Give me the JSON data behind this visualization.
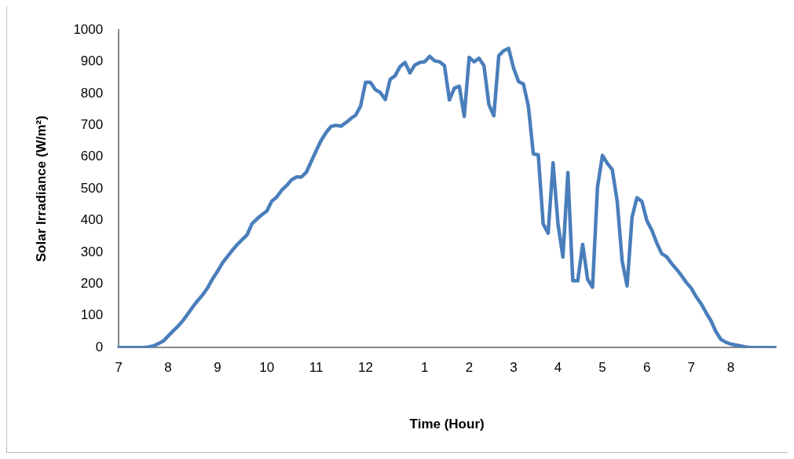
{
  "chart_data": {
    "type": "line",
    "xlabel": "Time (Hour)",
    "ylabel": "Solar Irradiance (W/m²)",
    "marker": "none",
    "line_style": "solid",
    "categories": [
      "7",
      null,
      null,
      null,
      null,
      null,
      null,
      null,
      null,
      null,
      "8",
      null,
      null,
      null,
      null,
      null,
      null,
      null,
      null,
      null,
      "9",
      null,
      null,
      null,
      null,
      null,
      null,
      null,
      null,
      null,
      "10",
      null,
      null,
      null,
      null,
      null,
      null,
      null,
      null,
      null,
      "11",
      null,
      null,
      null,
      null,
      null,
      null,
      null,
      null,
      null,
      "12",
      null,
      null,
      null,
      null,
      null,
      null,
      null,
      null,
      null,
      null,
      null,
      "1",
      null,
      null,
      null,
      null,
      null,
      null,
      null,
      null,
      "2",
      null,
      null,
      null,
      null,
      null,
      null,
      null,
      null,
      "3",
      null,
      null,
      null,
      null,
      null,
      null,
      null,
      null,
      "4",
      null,
      null,
      null,
      null,
      null,
      null,
      null,
      null,
      "5",
      null,
      null,
      null,
      null,
      null,
      null,
      null,
      null,
      "6",
      null,
      null,
      null,
      null,
      null,
      null,
      null,
      null,
      "7",
      null,
      null,
      null,
      null,
      null,
      null,
      null,
      "8",
      null,
      null,
      null,
      null,
      null,
      null,
      null,
      null,
      null
    ],
    "series": [
      {
        "color": "#4a7ebb",
        "values": [
          0,
          0,
          0,
          0,
          0,
          0,
          2,
          5,
          12,
          20,
          36,
          52,
          67,
          85,
          106,
          128,
          148,
          166,
          188,
          216,
          240,
          266,
          286,
          306,
          324,
          340,
          355,
          390,
          405,
          418,
          430,
          461,
          474,
          495,
          510,
          528,
          537,
          537,
          552,
          586,
          620,
          652,
          677,
          696,
          700,
          697,
          708,
          721,
          732,
          760,
          835,
          835,
          812,
          803,
          781,
          845,
          856,
          885,
          898,
          865,
          890,
          898,
          900,
          917,
          903,
          900,
          888,
          780,
          817,
          823,
          728,
          914,
          900,
          911,
          888,
          765,
          730,
          919,
          935,
          942,
          880,
          838,
          830,
          760,
          610,
          607,
          389,
          360,
          582,
          389,
          285,
          551,
          210,
          210,
          325,
          215,
          190,
          505,
          605,
          580,
          560,
          460,
          273,
          194,
          410,
          472,
          460,
          400,
          370,
          330,
          296,
          286,
          265,
          247,
          227,
          205,
          187,
          160,
          138,
          110,
          84,
          50,
          26,
          17,
          11,
          8,
          5,
          2,
          0,
          0,
          0,
          0,
          0,
          0
        ]
      }
    ],
    "ylim": [
      0,
      1000
    ],
    "yticks": [
      0,
      100,
      200,
      300,
      400,
      500,
      600,
      700,
      800,
      900,
      1000
    ]
  }
}
